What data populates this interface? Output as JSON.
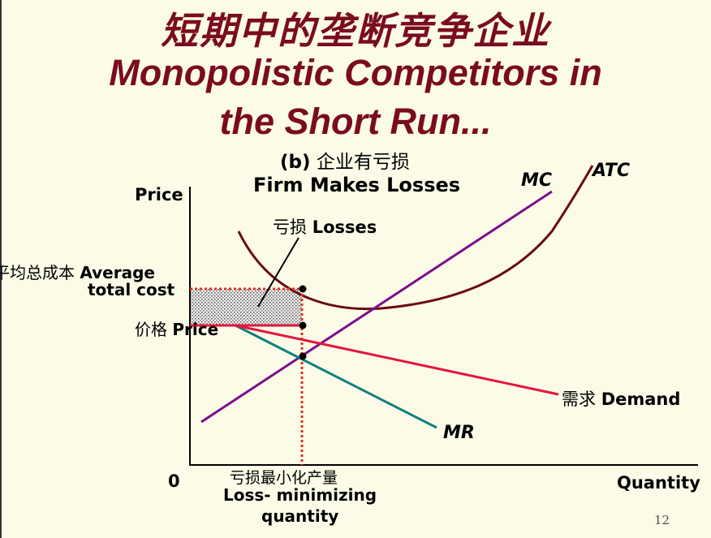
{
  "title": {
    "zh": "短期中的垄断竞争企业",
    "en_line1": "Monopolistic Competitors in",
    "en_line2": "the Short Run..."
  },
  "panel": {
    "label_prefix": "(b)",
    "label_zh": "企业有亏损",
    "label_en": "Firm Makes Losses"
  },
  "axes": {
    "y_label": "Price",
    "x_label": "Quantity",
    "origin": "0"
  },
  "curves": {
    "mc": "MC",
    "atc": "ATC",
    "mr": "MR",
    "demand_zh": "需求",
    "demand_en": "Demand"
  },
  "annotations": {
    "losses_zh": "亏损",
    "losses_en": "Losses",
    "atc_zh": "平均总成本",
    "atc_en_1": "Average",
    "atc_en_2": "total cost",
    "price_zh": "价格",
    "price_en": "Price",
    "qty_zh": "亏损最小化产量",
    "qty_en_1": "Loss- minimizing",
    "qty_en_2": "quantity"
  },
  "page_number": "12",
  "colors": {
    "title": "#7a0c1e",
    "mc": "#7b0f8c",
    "atc": "#6b0a14",
    "mr": "#128080",
    "demand": "#e3163c",
    "dotted": "#e0301e",
    "background": "#fbfbe8"
  }
}
